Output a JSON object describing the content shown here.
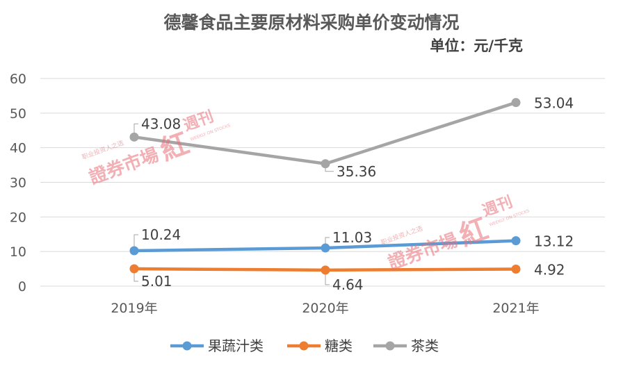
{
  "chart_data": {
    "type": "line",
    "title": "德馨食品主要原材料采购单价变动情况",
    "subtitle": "单位：元/千克",
    "categories": [
      "2019年",
      "2020年",
      "2021年"
    ],
    "series": [
      {
        "name": "果蔬汁类",
        "color": "#5B9BD5",
        "values": [
          10.24,
          11.03,
          13.12
        ],
        "labels": [
          "10.24",
          "11.03",
          "13.12"
        ]
      },
      {
        "name": "糖类",
        "color": "#ED7D31",
        "values": [
          5.01,
          4.64,
          4.92
        ],
        "labels": [
          "5.01",
          "4.64",
          "4.92"
        ]
      },
      {
        "name": "茶类",
        "color": "#A5A5A5",
        "values": [
          43.08,
          35.36,
          53.04
        ],
        "labels": [
          "43.08",
          "35.36",
          "53.04"
        ]
      }
    ],
    "ylim": [
      0,
      60
    ],
    "yticks": [
      "0",
      "10",
      "20",
      "30",
      "40",
      "50",
      "60"
    ],
    "grid": true,
    "legend": "bottom"
  },
  "watermark": {
    "main": "證券市場",
    "script": "紅",
    "suffix": "週刊",
    "slogan": "职业投资人之选",
    "english": "WEEKLY ON STOCKS",
    "color": "#E8707A"
  }
}
